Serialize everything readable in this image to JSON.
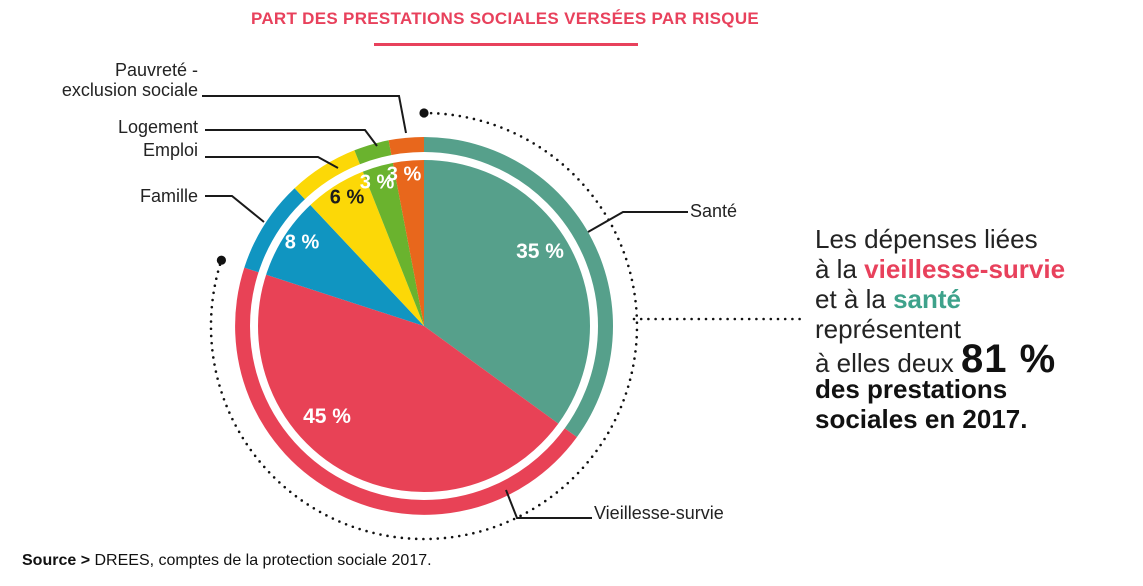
{
  "title": "PART DES PRESTATIONS SOCIALES VERSÉES PAR RISQUE",
  "chart_data": {
    "type": "pie",
    "title": "Part des prestations sociales versées par risque",
    "unit": "%",
    "start_angle_deg": 0,
    "direction": "clockwise",
    "slices": [
      {
        "label": "Santé",
        "value": 35,
        "pct_label": "35 %",
        "color": "#56a08b",
        "pct_color": "#ffffff",
        "highlighted": true
      },
      {
        "label": "Vieillesse-survie",
        "value": 45,
        "pct_label": "45 %",
        "color": "#e84256",
        "pct_color": "#ffffff",
        "highlighted": true
      },
      {
        "label": "Famille",
        "value": 8,
        "pct_label": "8 %",
        "color": "#1095c1",
        "pct_color": "#ffffff",
        "highlighted": false
      },
      {
        "label": "Emploi",
        "value": 6,
        "pct_label": "6 %",
        "color": "#fcd807",
        "pct_color": "#1c1c1c",
        "highlighted": false
      },
      {
        "label": "Logement",
        "value": 3,
        "pct_label": "3 %",
        "color": "#6ab32e",
        "pct_color": "#ffffff",
        "highlighted": false
      },
      {
        "label": "Pauvreté - exclusion sociale",
        "value": 3,
        "pct_label": "3 %",
        "color": "#e8671c",
        "pct_color": "#ffffff",
        "highlighted": false
      }
    ],
    "legend_position": "callout-labels",
    "highlighted_share_label": "81 %"
  },
  "callouts": {
    "pauvrete_line1": "Pauvreté -",
    "pauvrete_line2": "exclusion sociale"
  },
  "annotation": {
    "line1": "Les dépenses liées",
    "line2_prefix": "à la ",
    "line2_highlight": "vieillesse-survie",
    "line3_prefix": "et à la ",
    "line3_highlight": "santé",
    "line4": "représentent",
    "line5_prefix": "à elles deux ",
    "line5_big": "81 %",
    "line6": "des prestations",
    "line7": "sociales en 2017."
  },
  "source": {
    "label": "Source >",
    "text": "DREES, comptes de la protection sociale 2017."
  },
  "colors": {
    "accent_red": "#e8415c",
    "accent_teal": "#3ea28b",
    "ink": "#1a1a1a"
  }
}
